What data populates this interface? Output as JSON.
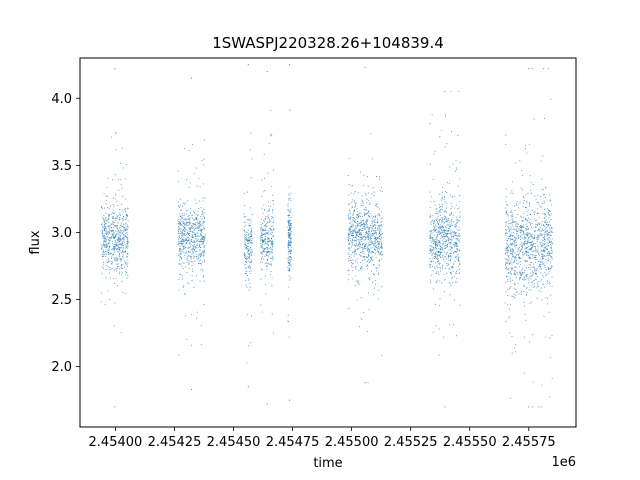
{
  "chart_data": {
    "type": "scatter",
    "title": "1SWASPJ220328.26+104839.4",
    "xlabel": "time",
    "ylabel": "flux",
    "x_offset_text": "1e6",
    "xlim": [
      2453850,
      2455950
    ],
    "ylim": [
      1.55,
      4.3
    ],
    "xticks": [
      2454000,
      2454250,
      2454500,
      2454750,
      2455000,
      2455250,
      2455500,
      2455750
    ],
    "xtick_labels": [
      "2.45400",
      "2.45425",
      "2.45450",
      "2.45475",
      "2.45500",
      "2.45525",
      "2.45550",
      "2.45575"
    ],
    "yticks": [
      2.0,
      2.5,
      3.0,
      3.5,
      4.0
    ],
    "ytick_labels": [
      "2.0",
      "2.5",
      "3.0",
      "3.5",
      "4.0"
    ],
    "grid": false,
    "marker_color": "#1f77b4",
    "series": [
      {
        "seasons": [
          {
            "x_range": [
              2453940,
              2454055
            ],
            "median": 2.95,
            "spread": 0.12,
            "min": 1.7,
            "max": 4.22
          },
          {
            "x_range": [
              2454265,
              2454380
            ],
            "median": 2.97,
            "spread": 0.12,
            "min": 1.83,
            "max": 4.15
          },
          {
            "x_range": [
              2454545,
              2454580
            ],
            "median": 2.9,
            "spread": 0.12,
            "min": 1.85,
            "max": 4.25
          },
          {
            "x_range": [
              2454615,
              2454670
            ],
            "median": 2.95,
            "spread": 0.13,
            "min": 1.72,
            "max": 4.2
          },
          {
            "x_range": [
              2454730,
              2454745
            ],
            "median": 2.95,
            "spread": 0.12,
            "min": 1.75,
            "max": 4.25
          },
          {
            "x_range": [
              2454985,
              2455130
            ],
            "median": 2.97,
            "spread": 0.13,
            "min": 1.88,
            "max": 4.23
          },
          {
            "x_range": [
              2455330,
              2455460
            ],
            "median": 2.95,
            "spread": 0.14,
            "min": 1.7,
            "max": 4.05
          },
          {
            "x_range": [
              2455650,
              2455850
            ],
            "median": 2.9,
            "spread": 0.17,
            "min": 1.7,
            "max": 4.22
          }
        ]
      }
    ]
  }
}
